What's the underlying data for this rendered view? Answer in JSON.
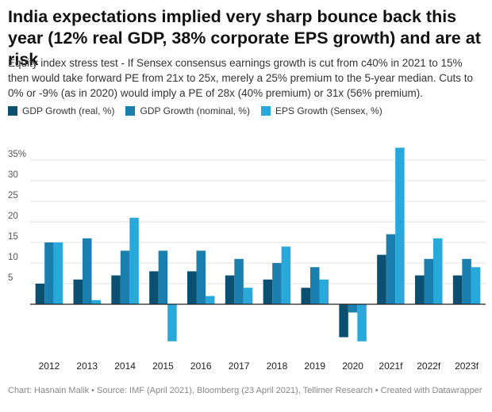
{
  "header": {
    "title": "India expectations implied very sharp bounce back this year (12% real GDP, 38% corporate EPS growth) and are at risk",
    "subtitle": "Equity index stress test - If Sensex consensus earnings growth is cut from c40% in 2021 to 15% then would take forward PE from 21x to 25x, merely a 25% premium to the 5-year median. Cuts to 0% or -9% (as in 2020) would imply a PE of 28x (40% premium) or 31x (56% premium)."
  },
  "footer": {
    "text": "Chart: Hasnain Malik • Source: IMF (April 2021), Bloomberg (23 April 2021), Tellimer Research • Created with Datawrapper"
  },
  "colors": {
    "gdp_real": "#0b4f71",
    "gdp_nominal": "#1a7eae",
    "eps": "#27a9dc",
    "grid": "#e0e0e0",
    "axis": "#222222"
  },
  "chart_data": {
    "type": "bar",
    "categories": [
      "2012",
      "2013",
      "2014",
      "2015",
      "2016",
      "2017",
      "2018",
      "2019",
      "2020",
      "2021f",
      "2022f",
      "2023f"
    ],
    "series": [
      {
        "name": "GDP Growth (real, %)",
        "color_key": "gdp_real",
        "values": [
          5,
          6,
          7,
          8,
          8,
          7,
          6,
          4,
          -8,
          12,
          7,
          7
        ]
      },
      {
        "name": "GDP Growth (nominal, %)",
        "color_key": "gdp_nominal",
        "values": [
          15,
          16,
          13,
          13,
          13,
          11,
          10,
          9,
          -2,
          17,
          11,
          11
        ]
      },
      {
        "name": "EPS Growth (Sensex, %)",
        "color_key": "eps",
        "values": [
          15,
          1,
          21,
          -9,
          2,
          4,
          14,
          6,
          -9,
          38,
          16,
          9
        ]
      }
    ],
    "y_ticks": [
      {
        "value": 5,
        "label": "5"
      },
      {
        "value": 10,
        "label": "10"
      },
      {
        "value": 15,
        "label": "15"
      },
      {
        "value": 20,
        "label": "20"
      },
      {
        "value": 25,
        "label": "25"
      },
      {
        "value": 30,
        "label": "30"
      },
      {
        "value": 35,
        "label": "35%"
      }
    ],
    "ylim": [
      -10,
      38
    ],
    "grid": true,
    "legend_position": "top-left"
  }
}
